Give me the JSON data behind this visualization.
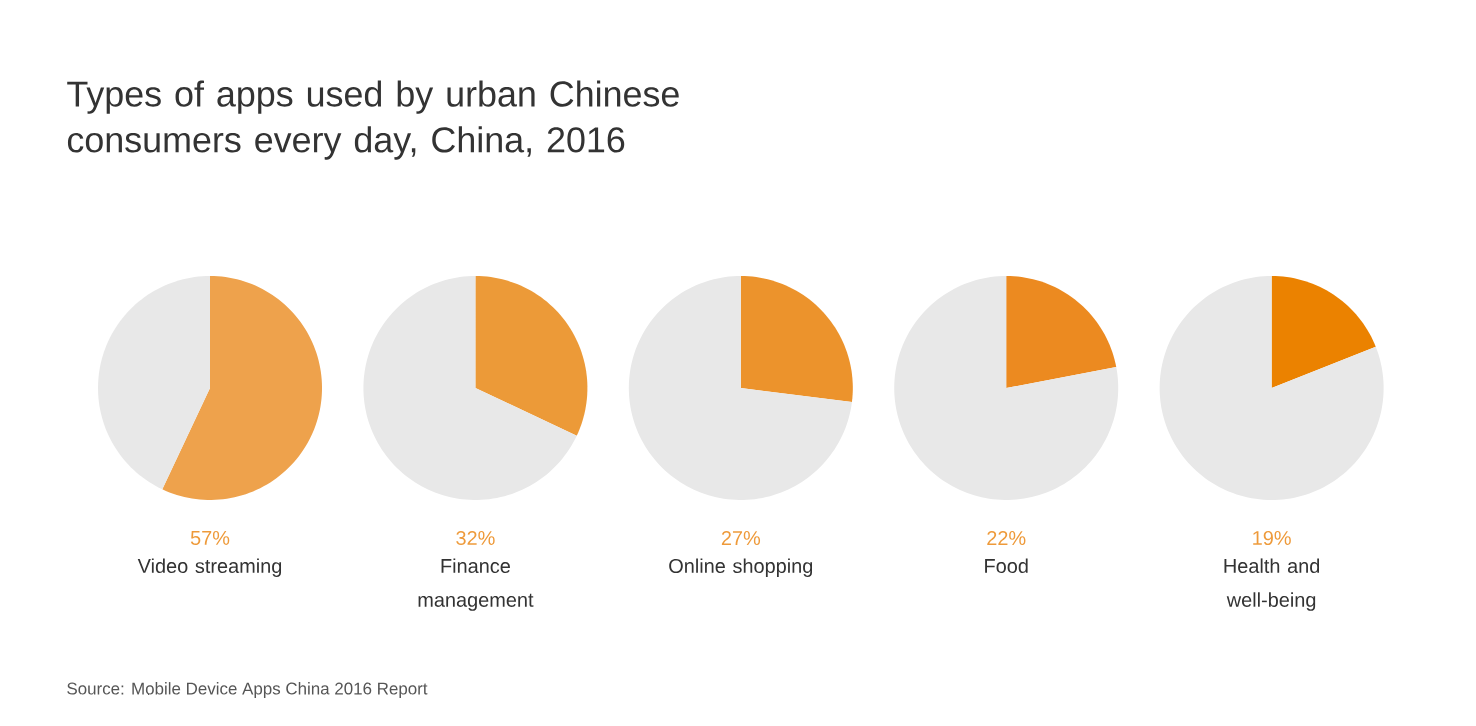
{
  "chart_data": [
    {
      "type": "other",
      "title": "Types of apps used by urban Chinese consumers every day, China, 2016",
      "annotations": [
        "Source: Mobile Device Apps China 2016 Report"
      ]
    },
    {
      "type": "pie",
      "subtitle": "57%",
      "title": "Video streaming",
      "categories": [
        null,
        null
      ],
      "values": [
        57,
        43
      ],
      "colors": [
        "#eea24c",
        "#e8e8e8"
      ]
    },
    {
      "type": "pie",
      "subtitle": "32%",
      "title": "Finance management",
      "categories": [
        null,
        null
      ],
      "values": [
        32,
        68
      ],
      "colors": [
        "#ec9a38",
        "#e8e8e8"
      ]
    },
    {
      "type": "pie",
      "subtitle": "27%",
      "title": "Online shopping",
      "categories": [
        null,
        null
      ],
      "values": [
        27,
        73
      ],
      "colors": [
        "#ec932c",
        "#e8e8e8"
      ]
    },
    {
      "type": "pie",
      "subtitle": "22%",
      "title": "Food",
      "categories": [
        null,
        null
      ],
      "values": [
        22,
        78
      ],
      "colors": [
        "#ec8a20",
        "#e8e8e8"
      ]
    },
    {
      "type": "pie",
      "subtitle": "19%",
      "title": "Health and well-being",
      "categories": [
        null,
        null
      ],
      "values": [
        19,
        81
      ],
      "colors": [
        "#eb8200",
        "#e8e8e8"
      ]
    }
  ]
}
